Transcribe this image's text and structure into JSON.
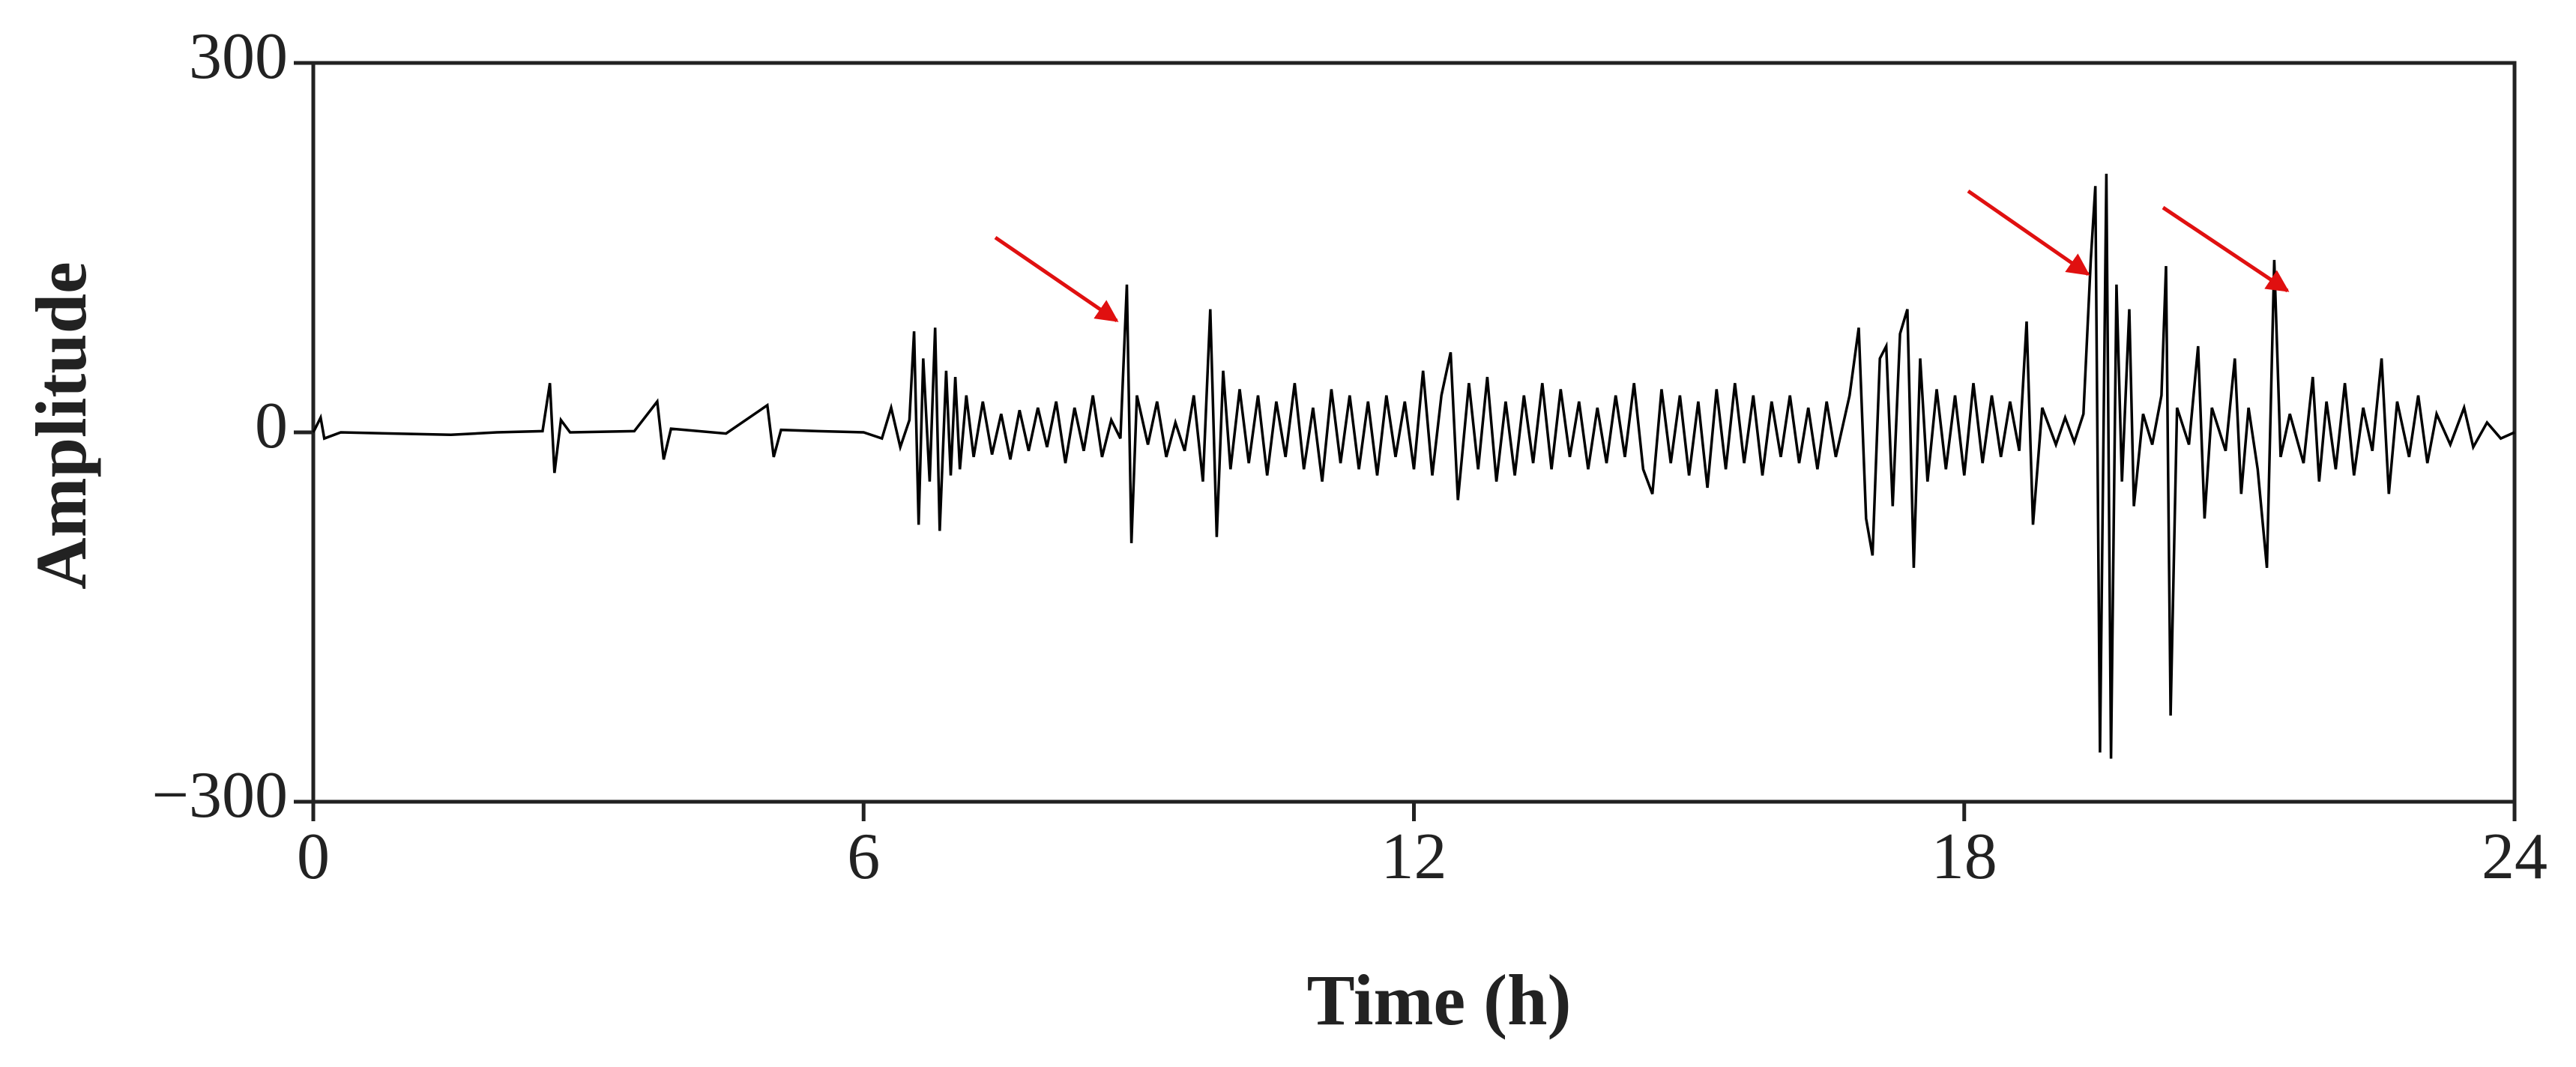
{
  "chart_data": {
    "type": "line",
    "xlabel": "Time (h)",
    "ylabel": "Amplitude",
    "xlim": [
      0,
      24
    ],
    "xticks": [
      0,
      6,
      12,
      18,
      24
    ],
    "ylim": [
      -300,
      300
    ],
    "yticks": [
      {
        "value": -300,
        "label": "−300"
      },
      0,
      300
    ],
    "grid": false,
    "series": [
      {
        "name": "Amplitude",
        "color": "#000000",
        "x": [
          0,
          0.08,
          0.12,
          0.3,
          1.5,
          2.0,
          2.5,
          2.58,
          2.63,
          2.7,
          2.8,
          3.5,
          3.75,
          3.82,
          3.9,
          4.5,
          4.95,
          5.02,
          5.1,
          5.5,
          6.0,
          6.2,
          6.3,
          6.4,
          6.5,
          6.55,
          6.6,
          6.65,
          6.72,
          6.78,
          6.83,
          6.9,
          6.95,
          7.0,
          7.05,
          7.12,
          7.2,
          7.3,
          7.4,
          7.5,
          7.6,
          7.7,
          7.8,
          7.9,
          8.0,
          8.1,
          8.2,
          8.3,
          8.4,
          8.5,
          8.6,
          8.7,
          8.8,
          8.87,
          8.92,
          8.98,
          9.1,
          9.2,
          9.3,
          9.4,
          9.5,
          9.6,
          9.7,
          9.78,
          9.85,
          9.92,
          10.0,
          10.1,
          10.2,
          10.3,
          10.4,
          10.5,
          10.6,
          10.7,
          10.8,
          10.9,
          11.0,
          11.1,
          11.2,
          11.3,
          11.4,
          11.5,
          11.6,
          11.7,
          11.8,
          11.9,
          12.0,
          12.1,
          12.2,
          12.3,
          12.4,
          12.48,
          12.6,
          12.7,
          12.8,
          12.9,
          13.0,
          13.1,
          13.2,
          13.3,
          13.4,
          13.5,
          13.6,
          13.7,
          13.8,
          13.9,
          14.0,
          14.1,
          14.2,
          14.3,
          14.4,
          14.5,
          14.6,
          14.7,
          14.8,
          14.9,
          15.0,
          15.1,
          15.2,
          15.3,
          15.4,
          15.5,
          15.6,
          15.7,
          15.8,
          15.9,
          16.0,
          16.1,
          16.2,
          16.3,
          16.4,
          16.5,
          16.6,
          16.75,
          16.85,
          16.93,
          17.0,
          17.08,
          17.15,
          17.22,
          17.3,
          17.38,
          17.45,
          17.52,
          17.6,
          17.7,
          17.8,
          17.9,
          18.0,
          18.1,
          18.2,
          18.3,
          18.4,
          18.5,
          18.6,
          18.68,
          18.75,
          18.85,
          19.0,
          19.1,
          19.2,
          19.3,
          19.38,
          19.43,
          19.48,
          19.55,
          19.6,
          19.66,
          19.72,
          19.8,
          19.85,
          19.95,
          20.05,
          20.15,
          20.2,
          20.25,
          20.32,
          20.45,
          20.55,
          20.62,
          20.7,
          20.85,
          20.95,
          21.02,
          21.1,
          21.2,
          21.3,
          21.38,
          21.45,
          21.55,
          21.7,
          21.8,
          21.87,
          21.95,
          22.05,
          22.15,
          22.25,
          22.35,
          22.45,
          22.55,
          22.63,
          22.72,
          22.85,
          22.95,
          23.05,
          23.15,
          23.3,
          23.45,
          23.55,
          23.7,
          23.85,
          24.0
        ],
        "values": [
          0,
          12,
          -5,
          0,
          -2,
          0,
          1,
          40,
          -33,
          10,
          0,
          1,
          25,
          -22,
          3,
          -1,
          22,
          -20,
          2,
          1,
          0,
          -5,
          20,
          -12,
          10,
          82,
          -75,
          60,
          -40,
          85,
          -80,
          50,
          -35,
          45,
          -30,
          30,
          -20,
          25,
          -18,
          15,
          -22,
          18,
          -15,
          20,
          -12,
          25,
          -25,
          20,
          -15,
          30,
          -20,
          10,
          -5,
          120,
          -90,
          30,
          -10,
          25,
          -20,
          8,
          -15,
          30,
          -40,
          100,
          -85,
          50,
          -30,
          35,
          -25,
          30,
          -35,
          25,
          -20,
          40,
          -30,
          20,
          -40,
          35,
          -25,
          30,
          -30,
          25,
          -35,
          30,
          -20,
          25,
          -30,
          50,
          -35,
          30,
          65,
          -55,
          40,
          -30,
          45,
          -40,
          25,
          -35,
          30,
          -25,
          40,
          -30,
          35,
          -20,
          25,
          -30,
          20,
          -25,
          30,
          -20,
          40,
          -30,
          -50,
          35,
          -25,
          30,
          -35,
          25,
          -45,
          35,
          -30,
          40,
          -25,
          30,
          -35,
          25,
          -20,
          30,
          -25,
          20,
          -30,
          25,
          -20,
          30,
          85,
          -70,
          -100,
          60,
          70,
          -60,
          80,
          100,
          -110,
          60,
          -40,
          35,
          -30,
          30,
          -35,
          40,
          -25,
          30,
          -20,
          25,
          -15,
          90,
          -75,
          20,
          -10,
          12,
          -8,
          15,
          140,
          200,
          -260,
          210,
          -265,
          120,
          -40,
          100,
          -60,
          15,
          -10,
          30,
          135,
          -230,
          20,
          -10,
          70,
          -70,
          20,
          -15,
          60,
          -50,
          20,
          -30,
          -110,
          140,
          -20,
          15,
          -25,
          45,
          -40,
          25,
          -30,
          40,
          -35,
          20,
          -15,
          60,
          -50,
          25,
          -20,
          30,
          -25,
          15,
          -10,
          20,
          -12,
          8,
          -5,
          0
        ]
      }
    ]
  }
}
